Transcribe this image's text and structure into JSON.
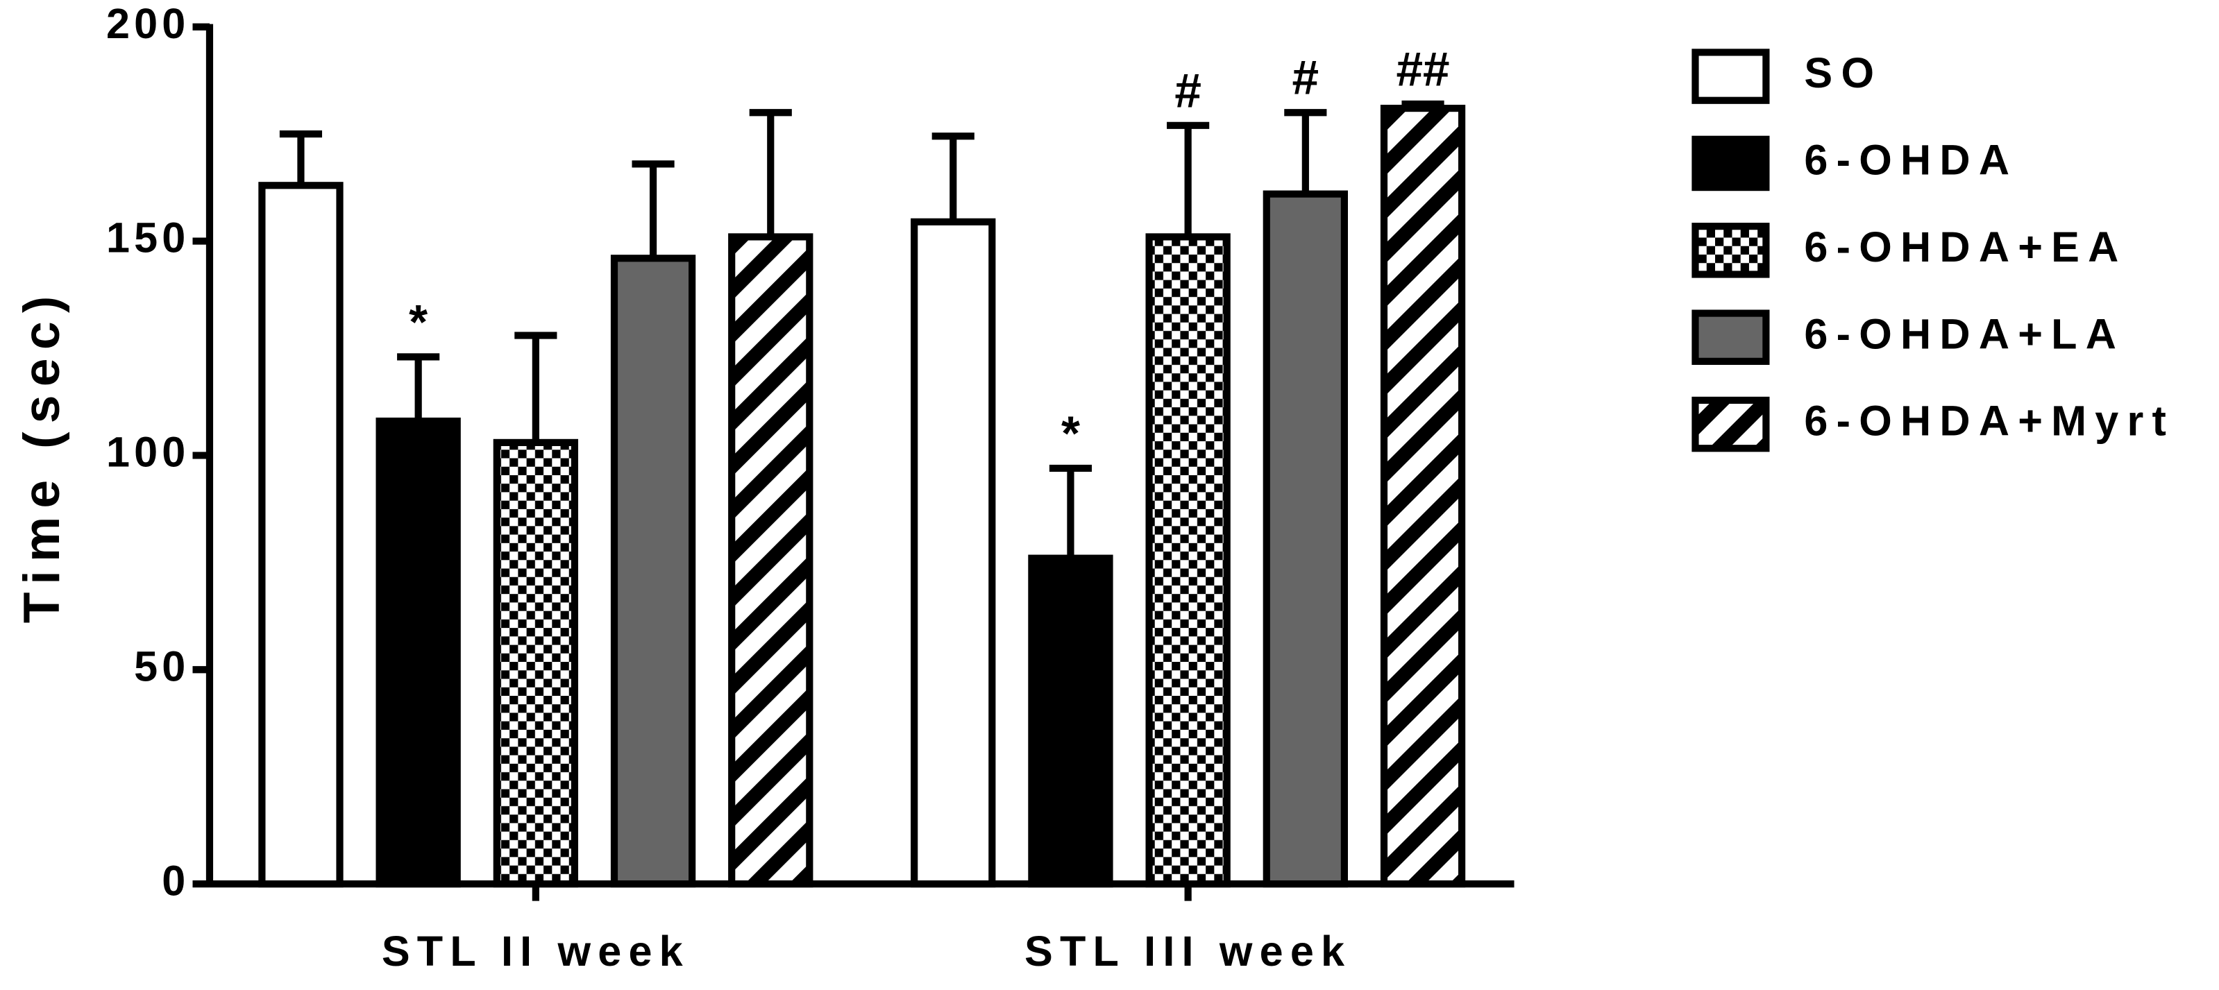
{
  "chart_data": {
    "type": "bar",
    "ylabel": "Time (sec)",
    "categories": [
      "STL II week",
      "STL III week"
    ],
    "ylim": [
      0,
      200
    ],
    "yticks": [
      0,
      50,
      100,
      150,
      200
    ],
    "legend": "right",
    "series": [
      {
        "name": "SO",
        "color": "#ffffff",
        "pattern": "solid",
        "values": [
          163,
          154.5
        ],
        "errors": [
          12,
          20
        ],
        "annotations": [
          null,
          null
        ]
      },
      {
        "name": "6-OHDA",
        "color": "#000000",
        "pattern": "solid",
        "values": [
          108,
          76
        ],
        "errors": [
          15,
          21
        ],
        "annotations": [
          "*",
          "*"
        ]
      },
      {
        "name": "6-OHDA+EA",
        "color": "#000000",
        "pattern": "checker",
        "values": [
          103,
          151
        ],
        "errors": [
          25,
          26
        ],
        "annotations": [
          null,
          "#"
        ]
      },
      {
        "name": "6-OHDA+LA",
        "color": "#666666",
        "pattern": "solid",
        "values": [
          146,
          161
        ],
        "errors": [
          22,
          19
        ],
        "annotations": [
          null,
          "#"
        ]
      },
      {
        "name": "6-OHDA+Myrt",
        "color": "#000000",
        "pattern": "stripes",
        "values": [
          151,
          181
        ],
        "errors": [
          29,
          1
        ],
        "annotations": [
          null,
          "##"
        ]
      }
    ]
  }
}
